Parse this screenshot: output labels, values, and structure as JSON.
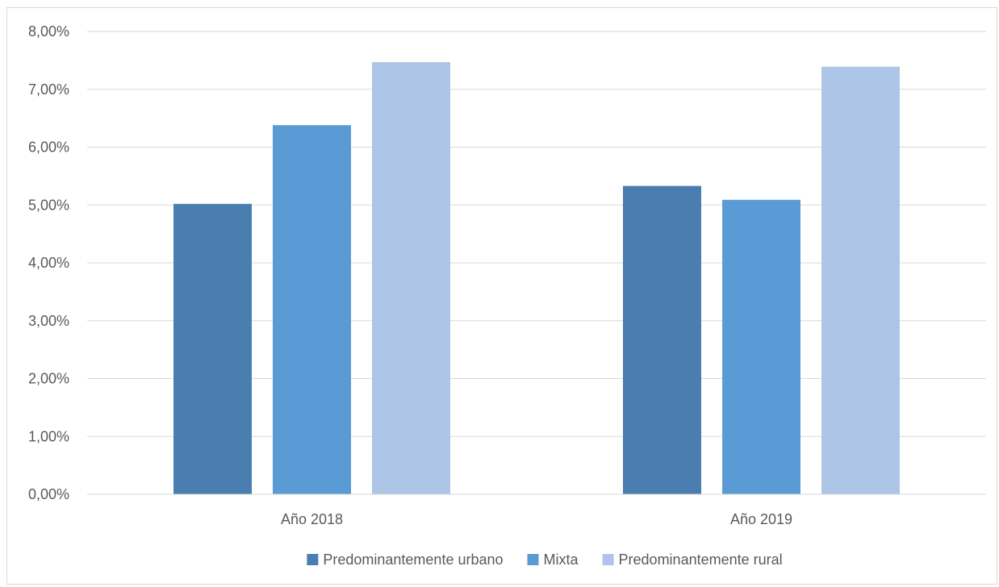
{
  "chart_data": {
    "type": "bar",
    "categories": [
      "Año 2018",
      "Año 2019"
    ],
    "series": [
      {
        "name": "Predominantemente urbano",
        "values": [
          5.02,
          5.33
        ],
        "color": "#4a7eb0"
      },
      {
        "name": "Mixta",
        "values": [
          6.38,
          5.09
        ],
        "color": "#5b9bd5"
      },
      {
        "name": "Predominantemente rural",
        "values": [
          7.47,
          7.39
        ],
        "color": "#adc5e6"
      }
    ],
    "ylim": [
      0,
      8
    ],
    "yticks": [
      {
        "value": 0,
        "label": "0,00%"
      },
      {
        "value": 1,
        "label": "1,00%"
      },
      {
        "value": 2,
        "label": "2,00%"
      },
      {
        "value": 3,
        "label": "3,00%"
      },
      {
        "value": 4,
        "label": "4,00%"
      },
      {
        "value": 5,
        "label": "5,00%"
      },
      {
        "value": 6,
        "label": "6,00%"
      },
      {
        "value": 7,
        "label": "7,00%"
      },
      {
        "value": 8,
        "label": "8,00%"
      }
    ],
    "grid": true,
    "legend_position": "bottom",
    "gridline_color": "#d9d9d9",
    "text_color": "#595959"
  }
}
